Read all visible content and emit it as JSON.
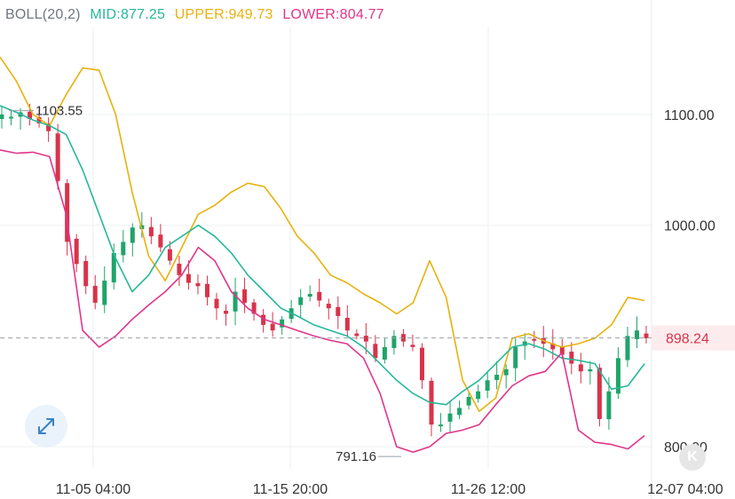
{
  "legend": {
    "indicator": "BOLL(20,2)",
    "mid": "MID:877.25",
    "upper": "UPPER:949.73",
    "lower": "LOWER:804.77"
  },
  "colors": {
    "mid": "#26b89a",
    "upper": "#e8b10e",
    "lower": "#e0358a",
    "up": "#1fa46a",
    "down": "#d8334a",
    "grid": "#eef0f2",
    "text": "#333333",
    "label_gray": "#8a8f97"
  },
  "icons": {
    "expand": "expand-arrows-icon",
    "watermark": "k-logo-icon"
  },
  "watermark_text": "K",
  "chart_data": {
    "type": "candlestick",
    "indicator": "Bollinger Bands (20,2)",
    "y_ticks": [
      "1100.00",
      "1000.00",
      "800.00"
    ],
    "y_tick_values": [
      1100,
      1000,
      800
    ],
    "x_ticks": [
      "11-05 04:00",
      "11-15 20:00",
      "11-26 12:00",
      "12-07 04:00"
    ],
    "current_price": "898.24",
    "current_price_value": 898.24,
    "high_annotation": "1103.55",
    "high_value": 1103.55,
    "low_annotation": "791.16",
    "low_value": 791.16,
    "series": [
      {
        "name": "UPPER",
        "values": [
          1152,
          1130,
          1100,
          1090,
          1118,
          1142,
          1140,
          1100,
          1030,
          972,
          950,
          980,
          1010,
          1018,
          1030,
          1038,
          1035,
          1015,
          990,
          975,
          955,
          948,
          938,
          930,
          920,
          930,
          968,
          935,
          860,
          832,
          844,
          898,
          902,
          895,
          890,
          893,
          898,
          910,
          935,
          932
        ]
      },
      {
        "name": "MID",
        "values": [
          1108,
          1102,
          1095,
          1090,
          1082,
          1050,
          1010,
          970,
          940,
          955,
          980,
          990,
          1000,
          990,
          975,
          955,
          940,
          925,
          918,
          910,
          905,
          900,
          890,
          875,
          860,
          848,
          840,
          838,
          850,
          860,
          875,
          890,
          893,
          888,
          880,
          878,
          875,
          852,
          855,
          875
        ]
      },
      {
        "name": "LOWER",
        "values": [
          1068,
          1065,
          1066,
          1062,
          1010,
          905,
          890,
          900,
          915,
          928,
          940,
          955,
          980,
          968,
          940,
          925,
          915,
          910,
          905,
          900,
          896,
          893,
          880,
          848,
          800,
          795,
          800,
          812,
          815,
          820,
          838,
          855,
          864,
          868,
          885,
          815,
          804,
          802,
          798,
          810
        ]
      }
    ],
    "candle_closes": [
      1100,
      1098,
      1102,
      1096,
      1092,
      1085,
      1040,
      985,
      965,
      945,
      930,
      950,
      975,
      985,
      998,
      1000,
      990,
      980,
      968,
      955,
      948,
      945,
      935,
      925,
      920,
      940,
      930,
      920,
      910,
      905,
      915,
      925,
      935,
      938,
      932,
      925,
      918,
      905,
      900,
      895,
      880,
      890,
      900,
      895,
      890,
      860,
      820,
      820,
      830,
      835,
      845,
      850,
      860,
      865,
      870,
      890,
      895,
      897,
      893,
      888,
      883,
      875,
      868,
      870,
      825,
      850,
      880,
      900,
      905,
      898
    ]
  }
}
